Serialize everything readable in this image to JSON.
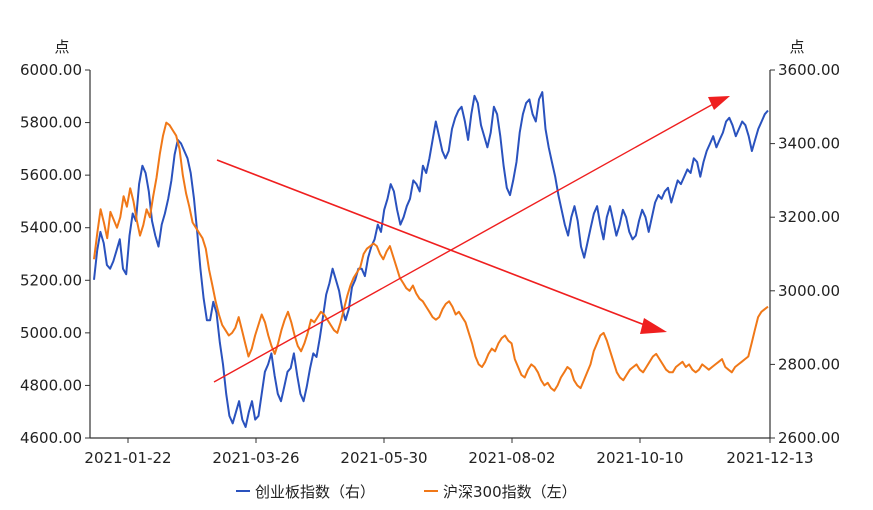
{
  "chart_data": {
    "type": "line",
    "left_axis": {
      "unit": "点",
      "ylim": [
        4600,
        6000
      ],
      "ticks": [
        "4600.00",
        "4800.00",
        "5000.00",
        "5200.00",
        "5400.00",
        "5600.00",
        "5800.00",
        "6000.00"
      ]
    },
    "right_axis": {
      "unit": "点",
      "ylim": [
        2600,
        3600
      ],
      "ticks": [
        "2600.00",
        "2800.00",
        "3000.00",
        "3200.00",
        "3400.00",
        "3600.00"
      ]
    },
    "x_ticks": [
      "2021-01-22",
      "2021-03-26",
      "2021-05-30",
      "2021-08-02",
      "2021-10-10",
      "2021-12-13"
    ],
    "series": [
      {
        "name": "创业板指数（右）",
        "axis": "right",
        "color": "#2a52be",
        "values": [
          3030,
          3110,
          3160,
          3130,
          3070,
          3060,
          3080,
          3110,
          3140,
          3060,
          3045,
          3150,
          3210,
          3190,
          3290,
          3340,
          3320,
          3270,
          3190,
          3150,
          3120,
          3180,
          3210,
          3250,
          3300,
          3370,
          3410,
          3400,
          3380,
          3360,
          3320,
          3250,
          3160,
          3060,
          2980,
          2920,
          2920,
          2970,
          2940,
          2860,
          2800,
          2720,
          2660,
          2640,
          2670,
          2700,
          2650,
          2630,
          2670,
          2700,
          2650,
          2660,
          2720,
          2780,
          2800,
          2830,
          2770,
          2720,
          2700,
          2740,
          2780,
          2790,
          2830,
          2770,
          2720,
          2700,
          2740,
          2790,
          2830,
          2820,
          2870,
          2930,
          2990,
          3020,
          3060,
          3030,
          3000,
          2950,
          2920,
          2950,
          3010,
          3030,
          3060,
          3060,
          3040,
          3090,
          3120,
          3140,
          3180,
          3160,
          3220,
          3250,
          3290,
          3270,
          3220,
          3180,
          3200,
          3230,
          3250,
          3300,
          3290,
          3270,
          3340,
          3320,
          3360,
          3410,
          3460,
          3420,
          3380,
          3360,
          3380,
          3440,
          3470,
          3490,
          3500,
          3460,
          3410,
          3480,
          3530,
          3510,
          3450,
          3420,
          3390,
          3430,
          3500,
          3480,
          3420,
          3340,
          3280,
          3260,
          3300,
          3350,
          3430,
          3480,
          3510,
          3520,
          3480,
          3460,
          3520,
          3540,
          3440,
          3390,
          3350,
          3310,
          3260,
          3220,
          3180,
          3150,
          3200,
          3230,
          3190,
          3120,
          3090,
          3130,
          3170,
          3210,
          3230,
          3180,
          3140,
          3200,
          3230,
          3190,
          3150,
          3180,
          3220,
          3200,
          3160,
          3140,
          3150,
          3190,
          3220,
          3200,
          3160,
          3200,
          3240,
          3260,
          3250,
          3270,
          3280,
          3240,
          3270,
          3300,
          3290,
          3310,
          3330,
          3320,
          3360,
          3350,
          3310,
          3350,
          3380,
          3400,
          3420,
          3390,
          3410,
          3430,
          3460,
          3470,
          3450,
          3420,
          3440,
          3460,
          3450,
          3420,
          3380,
          3410,
          3440,
          3460,
          3480,
          3490
        ]
      },
      {
        "name": "沪深300指数（左）",
        "axis": "left",
        "color": "#f07818",
        "values": [
          5280,
          5380,
          5470,
          5420,
          5360,
          5460,
          5430,
          5400,
          5440,
          5520,
          5480,
          5550,
          5500,
          5430,
          5370,
          5410,
          5470,
          5440,
          5520,
          5590,
          5680,
          5750,
          5800,
          5790,
          5770,
          5750,
          5700,
          5600,
          5530,
          5480,
          5420,
          5400,
          5380,
          5360,
          5320,
          5240,
          5180,
          5120,
          5070,
          5030,
          5010,
          4990,
          5000,
          5020,
          5060,
          5010,
          4960,
          4910,
          4940,
          4990,
          5030,
          5070,
          5040,
          4990,
          4950,
          4920,
          4960,
          5010,
          5050,
          5080,
          5040,
          4990,
          4950,
          4930,
          4960,
          5000,
          5050,
          5040,
          5060,
          5080,
          5070,
          5050,
          5030,
          5010,
          5000,
          5040,
          5090,
          5140,
          5180,
          5210,
          5230,
          5250,
          5300,
          5320,
          5330,
          5340,
          5330,
          5300,
          5280,
          5310,
          5330,
          5290,
          5250,
          5210,
          5190,
          5170,
          5160,
          5180,
          5150,
          5130,
          5120,
          5100,
          5080,
          5060,
          5050,
          5060,
          5090,
          5110,
          5120,
          5100,
          5070,
          5080,
          5060,
          5040,
          5000,
          4960,
          4910,
          4880,
          4870,
          4890,
          4920,
          4940,
          4930,
          4960,
          4980,
          4990,
          4970,
          4960,
          4900,
          4870,
          4840,
          4830,
          4860,
          4880,
          4870,
          4850,
          4820,
          4800,
          4810,
          4790,
          4780,
          4800,
          4830,
          4850,
          4870,
          4860,
          4820,
          4800,
          4790,
          4820,
          4850,
          4880,
          4930,
          4960,
          4990,
          5000,
          4970,
          4930,
          4890,
          4850,
          4830,
          4820,
          4840,
          4860,
          4870,
          4880,
          4860,
          4850,
          4870,
          4890,
          4910,
          4920,
          4900,
          4880,
          4860,
          4850,
          4850,
          4870,
          4880,
          4890,
          4870,
          4880,
          4860,
          4850,
          4860,
          4880,
          4870,
          4860,
          4870,
          4880,
          4890,
          4900,
          4870,
          4860,
          4850,
          4870,
          4880,
          4890,
          4900,
          4910,
          4960,
          5010,
          5060,
          5080,
          5090,
          5100
        ]
      }
    ]
  }
}
